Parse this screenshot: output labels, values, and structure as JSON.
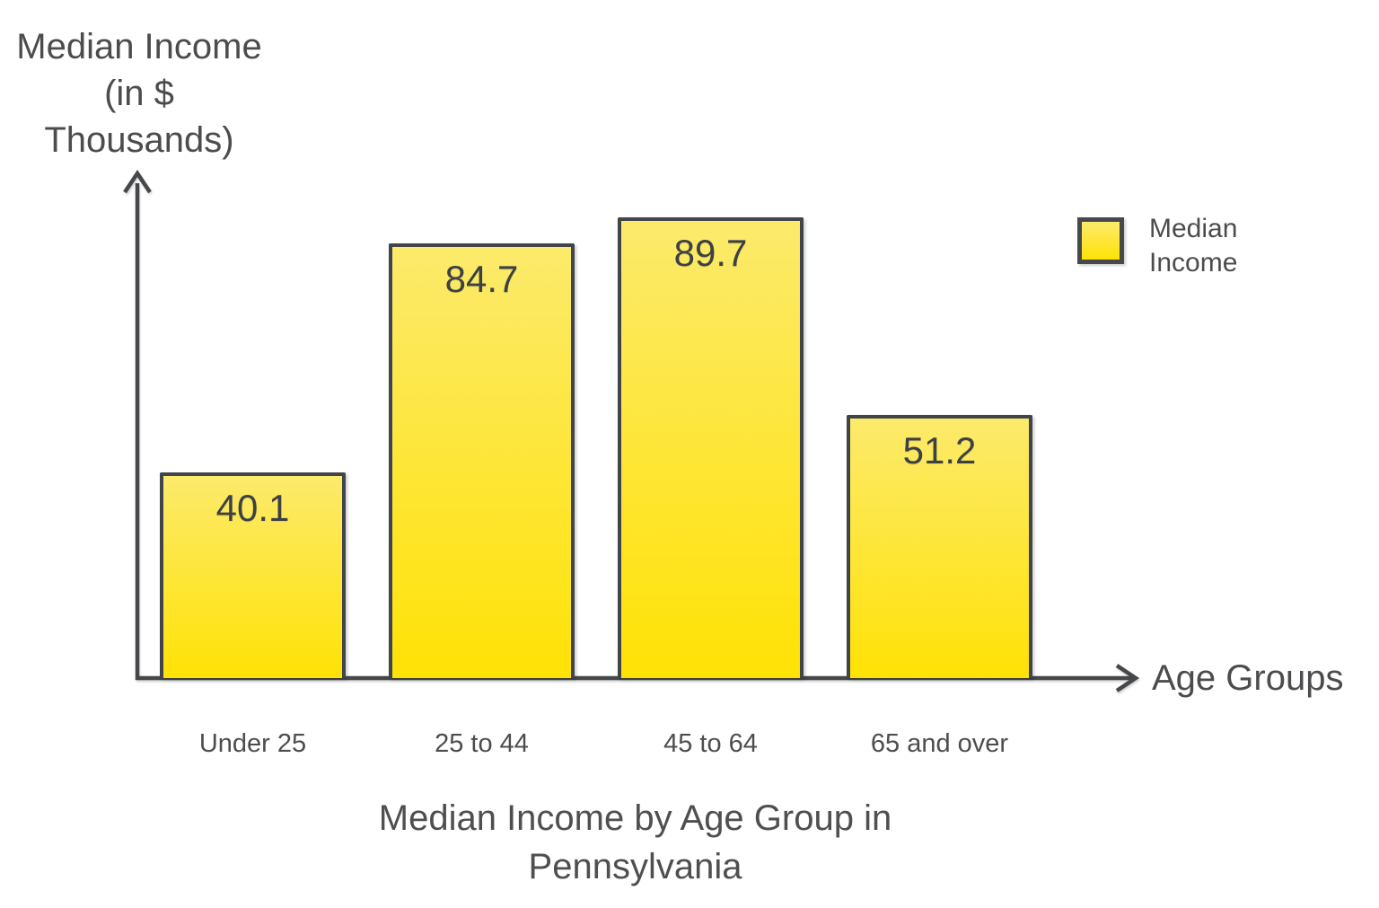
{
  "chart_data": {
    "type": "bar",
    "categories": [
      "Under 25",
      "25 to 44",
      "45 to 64",
      "65 and over"
    ],
    "values": [
      40.1,
      84.7,
      89.7,
      51.2
    ],
    "series_name": "Median Income",
    "title": "Median Income by Age Group in\nPennsylvania",
    "xlabel": "Age Groups",
    "ylabel": "Median Income (in $\nThousands)",
    "ylim": [
      0,
      95
    ],
    "grid": false,
    "legend_position": "top-right",
    "bar_color_top": "#fcea6c",
    "bar_color_bottom": "#ffe205",
    "bar_border_color": "#414549",
    "axis_color": "#45474a",
    "text_color": "#4b4c4e"
  },
  "legend": {
    "label": "Median\nIncome"
  }
}
